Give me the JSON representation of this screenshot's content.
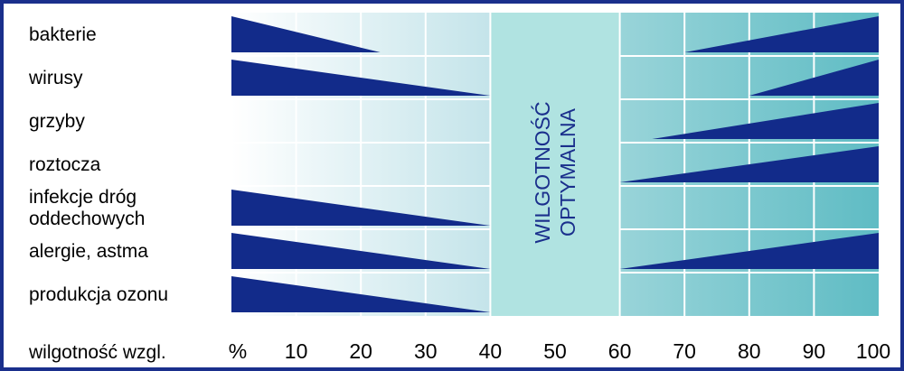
{
  "chart_data": {
    "type": "area",
    "x_axis_label": "wilgotność wzgl.",
    "x_unit": "%",
    "ticks": [
      10,
      20,
      30,
      40,
      50,
      60,
      70,
      80,
      90,
      100
    ],
    "xlim": [
      0,
      100
    ],
    "optimal_zone": {
      "range": [
        40,
        60
      ],
      "label_line1": "WILGOTNOŚĆ",
      "label_line2": "OPTYMALNA"
    },
    "rows": [
      {
        "label_lines": [
          "bakterie"
        ],
        "low": [
          0,
          23
        ],
        "high": [
          70,
          100
        ]
      },
      {
        "label_lines": [
          "wirusy"
        ],
        "low": [
          0,
          40
        ],
        "high": [
          80,
          100
        ]
      },
      {
        "label_lines": [
          "grzyby"
        ],
        "low": null,
        "high": [
          65,
          100
        ]
      },
      {
        "label_lines": [
          "roztocza"
        ],
        "low": null,
        "high": [
          60,
          100
        ]
      },
      {
        "label_lines": [
          "infekcje dróg",
          "oddechowych"
        ],
        "low": [
          0,
          40
        ],
        "high": null
      },
      {
        "label_lines": [
          "alergie, astma"
        ],
        "low": [
          0,
          40
        ],
        "high": [
          60,
          100
        ]
      },
      {
        "label_lines": [
          "produkcja ozonu"
        ],
        "low": [
          0,
          40
        ],
        "high": null
      }
    ],
    "colors": {
      "wedge": "#122b8a",
      "optimal_fill": "#b0e3e1",
      "gradient_end": "#5fbcc4",
      "frame": "#1a2f8c"
    }
  }
}
